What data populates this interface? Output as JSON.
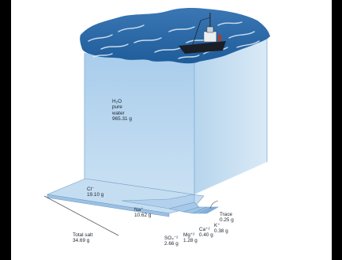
{
  "water": {
    "name": "H₂O",
    "line1": "pure",
    "line2": "water",
    "mass": "965.31 g"
  },
  "components": [
    {
      "ion": "Cl⁻",
      "mass": "19.10 g"
    },
    {
      "ion": "Na⁺",
      "mass": "10.62 g"
    },
    {
      "ion": "SO₄⁻²",
      "mass": "2.66 g"
    },
    {
      "ion": "Mg⁺²",
      "mass": "1.28 g"
    },
    {
      "ion": "Ca⁺²",
      "mass": "0.40 g"
    },
    {
      "ion": "K⁺",
      "mass": "0.38 g"
    },
    {
      "ion": "Trace",
      "mass": "0.25 g"
    }
  ],
  "total": {
    "line1": "Total salt",
    "mass": "34.69 g"
  },
  "colors": {
    "water": "#b8d6ef",
    "water_dark": "#8fbbe1",
    "waves": "#2f6ca8",
    "slab": "#bcd7ee"
  },
  "icons": {
    "ship": "fishing-boat-icon"
  }
}
